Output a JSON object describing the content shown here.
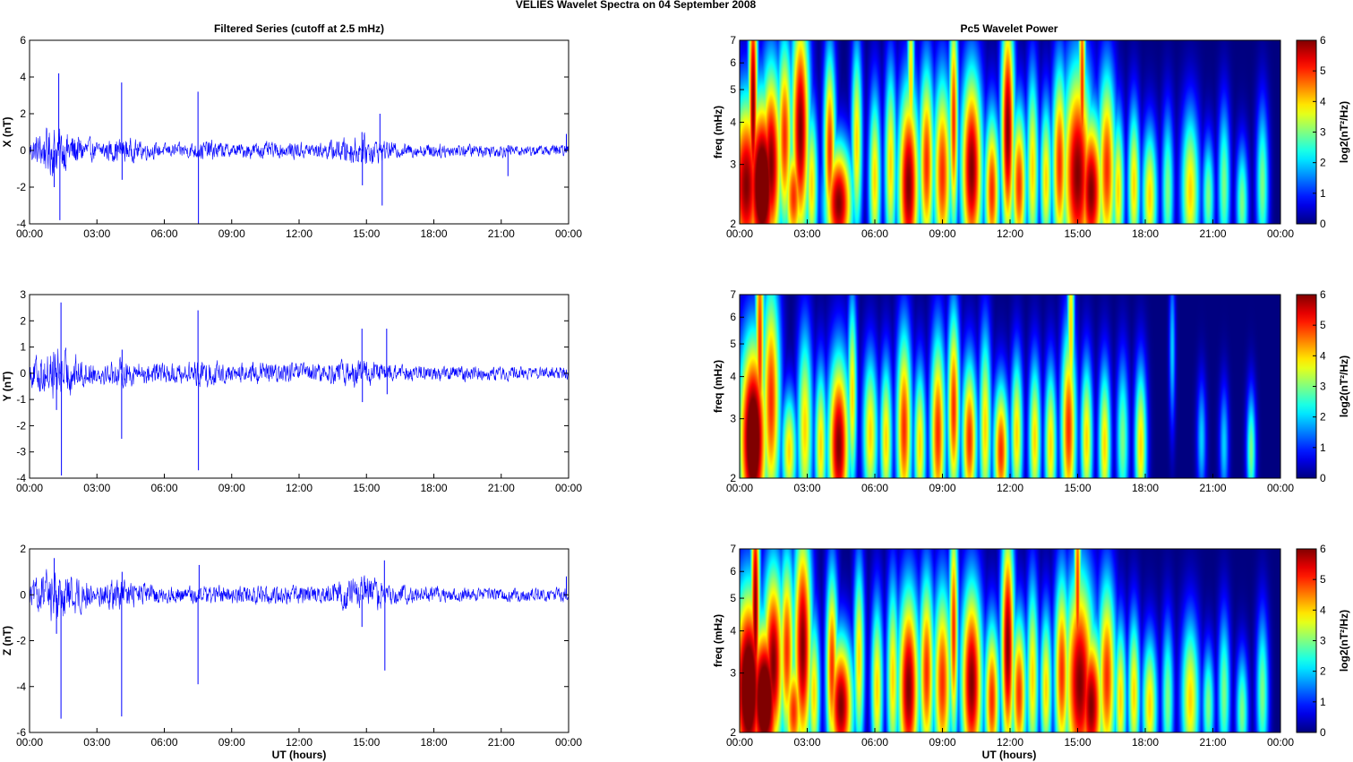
{
  "figure": {
    "suptitle": "VELIES Wavelet Spectra on 04 September 2008",
    "left_title": "Filtered Series (cutoff at 2.5 mHz)",
    "right_title": "Pc5 Wavelet Power",
    "xlabel": "UT (hours)"
  },
  "chart_data": [
    {
      "type": "line",
      "id": "series-x",
      "ylabel": "X (nT)",
      "xlim": [
        0,
        24
      ],
      "ylim": [
        -4,
        6
      ],
      "xticks": [
        "00:00",
        "03:00",
        "06:00",
        "09:00",
        "12:00",
        "15:00",
        "18:00",
        "21:00",
        "00:00"
      ],
      "yticks": [
        -4,
        -2,
        0,
        2,
        4,
        6
      ],
      "line_color": "#0000ff",
      "envelope": [
        [
          0,
          0.5
        ],
        [
          1,
          1.2
        ],
        [
          2,
          0.8
        ],
        [
          3,
          0.4
        ],
        [
          4,
          0.6
        ],
        [
          5,
          0.45
        ],
        [
          6,
          0.3
        ],
        [
          7,
          0.35
        ],
        [
          8,
          0.5
        ],
        [
          9,
          0.3
        ],
        [
          10,
          0.4
        ],
        [
          11,
          0.35
        ],
        [
          12,
          0.4
        ],
        [
          13,
          0.35
        ],
        [
          14,
          0.6
        ],
        [
          15,
          0.7
        ],
        [
          16,
          0.4
        ],
        [
          17,
          0.3
        ],
        [
          18,
          0.35
        ],
        [
          19,
          0.3
        ],
        [
          20,
          0.3
        ],
        [
          21,
          0.3
        ],
        [
          22,
          0.25
        ],
        [
          23,
          0.25
        ],
        [
          24,
          0.3
        ]
      ],
      "spikes": [
        [
          1.3,
          4.2
        ],
        [
          1.35,
          -3.8
        ],
        [
          1.1,
          -2.0
        ],
        [
          4.1,
          3.7
        ],
        [
          4.12,
          -1.6
        ],
        [
          7.5,
          3.2
        ],
        [
          7.52,
          -4.0
        ],
        [
          14.8,
          1.0
        ],
        [
          14.82,
          -1.9
        ],
        [
          15.7,
          -3.0
        ],
        [
          15.6,
          2.0
        ],
        [
          21.3,
          -1.4
        ],
        [
          23.9,
          0.9
        ]
      ]
    },
    {
      "type": "line",
      "id": "series-y",
      "ylabel": "Y (nT)",
      "xlim": [
        0,
        24
      ],
      "ylim": [
        -4,
        3
      ],
      "xticks": [
        "00:00",
        "03:00",
        "06:00",
        "09:00",
        "12:00",
        "15:00",
        "18:00",
        "21:00",
        "00:00"
      ],
      "yticks": [
        -4,
        -3,
        -2,
        -1,
        0,
        1,
        2,
        3
      ],
      "line_color": "#0000ff",
      "envelope": [
        [
          0,
          0.4
        ],
        [
          1,
          0.9
        ],
        [
          2,
          0.6
        ],
        [
          3,
          0.3
        ],
        [
          4,
          0.45
        ],
        [
          5,
          0.4
        ],
        [
          6,
          0.35
        ],
        [
          7,
          0.35
        ],
        [
          8,
          0.45
        ],
        [
          9,
          0.3
        ],
        [
          10,
          0.35
        ],
        [
          11,
          0.3
        ],
        [
          12,
          0.35
        ],
        [
          13,
          0.3
        ],
        [
          14,
          0.4
        ],
        [
          15,
          0.45
        ],
        [
          16,
          0.3
        ],
        [
          17,
          0.25
        ],
        [
          18,
          0.25
        ],
        [
          19,
          0.25
        ],
        [
          20,
          0.22
        ],
        [
          21,
          0.22
        ],
        [
          22,
          0.2
        ],
        [
          23,
          0.2
        ],
        [
          24,
          0.2
        ]
      ],
      "spikes": [
        [
          1.4,
          2.7
        ],
        [
          1.42,
          -3.9
        ],
        [
          1.2,
          -1.4
        ],
        [
          4.1,
          -2.5
        ],
        [
          4.12,
          0.9
        ],
        [
          7.5,
          2.4
        ],
        [
          7.52,
          -3.7
        ],
        [
          14.8,
          1.7
        ],
        [
          14.82,
          -1.1
        ],
        [
          15.9,
          1.7
        ],
        [
          15.92,
          -0.8
        ]
      ]
    },
    {
      "type": "line",
      "id": "series-z",
      "ylabel": "Z (nT)",
      "xlim": [
        0,
        24
      ],
      "ylim": [
        -6,
        2
      ],
      "xticks": [
        "00:00",
        "03:00",
        "06:00",
        "09:00",
        "12:00",
        "15:00",
        "18:00",
        "21:00",
        "00:00"
      ],
      "yticks": [
        -6,
        -4,
        -2,
        0,
        2
      ],
      "line_color": "#0000ff",
      "envelope": [
        [
          0,
          0.4
        ],
        [
          1,
          1.0
        ],
        [
          2,
          0.7
        ],
        [
          3,
          0.4
        ],
        [
          4,
          0.6
        ],
        [
          5,
          0.4
        ],
        [
          6,
          0.3
        ],
        [
          7,
          0.3
        ],
        [
          8,
          0.4
        ],
        [
          9,
          0.3
        ],
        [
          10,
          0.35
        ],
        [
          11,
          0.3
        ],
        [
          12,
          0.35
        ],
        [
          13,
          0.3
        ],
        [
          14,
          0.55
        ],
        [
          15,
          0.7
        ],
        [
          16,
          0.4
        ],
        [
          17,
          0.3
        ],
        [
          18,
          0.3
        ],
        [
          19,
          0.25
        ],
        [
          20,
          0.25
        ],
        [
          21,
          0.25
        ],
        [
          22,
          0.25
        ],
        [
          23,
          0.25
        ],
        [
          24,
          0.3
        ]
      ],
      "spikes": [
        [
          1.4,
          -5.4
        ],
        [
          1.1,
          1.6
        ],
        [
          1.2,
          -1.7
        ],
        [
          4.1,
          -5.3
        ],
        [
          4.12,
          1.0
        ],
        [
          7.5,
          -3.9
        ],
        [
          7.55,
          1.3
        ],
        [
          14.8,
          -1.4
        ],
        [
          15.8,
          1.5
        ],
        [
          15.82,
          -3.3
        ],
        [
          23.9,
          0.8
        ]
      ]
    },
    {
      "type": "heatmap",
      "id": "wavelet-x",
      "ylabel": "freq (mHz)",
      "yscale": "log",
      "xlim": [
        0,
        24
      ],
      "ylim": [
        2,
        7
      ],
      "xticks": [
        "00:00",
        "03:00",
        "06:00",
        "09:00",
        "12:00",
        "15:00",
        "18:00",
        "21:00",
        "00:00"
      ],
      "yticks": [
        2,
        3,
        4,
        5,
        6,
        7
      ],
      "colorbar": {
        "label": "log2(nT²/Hz)",
        "range": [
          0,
          6
        ],
        "ticks": [
          0,
          1,
          2,
          3,
          4,
          5,
          6
        ]
      },
      "blobs": [
        [
          0.3,
          2.6,
          0.5,
          0.45,
          6
        ],
        [
          1.0,
          2.6,
          0.5,
          0.45,
          7
        ],
        [
          0.6,
          4.5,
          0.15,
          0.7,
          6
        ],
        [
          1.4,
          3.0,
          0.35,
          0.5,
          6
        ],
        [
          2.0,
          3.6,
          0.25,
          0.5,
          5
        ],
        [
          2.7,
          3.8,
          0.3,
          0.6,
          6
        ],
        [
          2.4,
          2.4,
          0.3,
          0.3,
          5
        ],
        [
          3.2,
          2.6,
          0.2,
          0.4,
          4
        ],
        [
          4.0,
          3.3,
          0.2,
          0.5,
          5
        ],
        [
          4.4,
          2.3,
          0.45,
          0.3,
          6
        ],
        [
          5.2,
          3.5,
          0.18,
          0.5,
          4
        ],
        [
          6.0,
          2.7,
          0.2,
          0.45,
          4
        ],
        [
          6.7,
          3.0,
          0.2,
          0.5,
          4
        ],
        [
          7.5,
          2.6,
          0.35,
          0.5,
          6
        ],
        [
          7.6,
          5.2,
          0.12,
          0.6,
          4
        ],
        [
          8.3,
          3.0,
          0.25,
          0.5,
          5
        ],
        [
          9.0,
          2.8,
          0.3,
          0.5,
          5
        ],
        [
          9.5,
          4.0,
          0.15,
          0.6,
          5
        ],
        [
          10.3,
          2.9,
          0.35,
          0.5,
          6
        ],
        [
          11.2,
          2.5,
          0.25,
          0.4,
          5
        ],
        [
          11.9,
          3.8,
          0.22,
          0.6,
          6
        ],
        [
          12.4,
          2.6,
          0.25,
          0.4,
          5
        ],
        [
          13.0,
          2.9,
          0.2,
          0.5,
          4
        ],
        [
          13.6,
          2.7,
          0.2,
          0.4,
          4
        ],
        [
          14.2,
          3.0,
          0.25,
          0.5,
          5
        ],
        [
          15.0,
          2.8,
          0.5,
          0.55,
          6
        ],
        [
          15.6,
          2.5,
          0.4,
          0.4,
          6
        ],
        [
          16.3,
          2.9,
          0.3,
          0.5,
          5
        ],
        [
          15.2,
          5.0,
          0.12,
          0.8,
          5
        ],
        [
          16.8,
          2.5,
          0.2,
          0.4,
          4
        ],
        [
          17.5,
          2.6,
          0.2,
          0.4,
          4
        ],
        [
          18.2,
          2.4,
          0.25,
          0.35,
          4
        ],
        [
          19.0,
          2.5,
          0.2,
          0.4,
          3
        ],
        [
          20.0,
          2.5,
          0.3,
          0.4,
          4
        ],
        [
          20.8,
          2.4,
          0.2,
          0.3,
          3
        ],
        [
          21.5,
          2.6,
          0.2,
          0.4,
          3
        ],
        [
          22.3,
          2.3,
          0.2,
          0.3,
          3
        ],
        [
          23.2,
          2.6,
          0.2,
          0.4,
          3
        ]
      ]
    },
    {
      "type": "heatmap",
      "id": "wavelet-y",
      "ylabel": "freq (mHz)",
      "yscale": "log",
      "xlim": [
        0,
        24
      ],
      "ylim": [
        2,
        7
      ],
      "xticks": [
        "00:00",
        "03:00",
        "06:00",
        "09:00",
        "12:00",
        "15:00",
        "18:00",
        "21:00",
        "00:00"
      ],
      "yticks": [
        2,
        3,
        4,
        5,
        6,
        7
      ],
      "colorbar": {
        "label": "log2(nT²/Hz)",
        "range": [
          0,
          6
        ],
        "ticks": [
          0,
          1,
          2,
          3,
          4,
          5,
          6
        ]
      },
      "blobs": [
        [
          0.6,
          2.6,
          0.45,
          0.5,
          7
        ],
        [
          1.4,
          3.4,
          0.3,
          0.6,
          5
        ],
        [
          0.9,
          5.0,
          0.15,
          0.8,
          5
        ],
        [
          2.2,
          2.4,
          0.25,
          0.3,
          4
        ],
        [
          2.9,
          2.8,
          0.25,
          0.5,
          4
        ],
        [
          3.6,
          2.5,
          0.2,
          0.4,
          4
        ],
        [
          4.4,
          2.5,
          0.35,
          0.45,
          6
        ],
        [
          5.0,
          3.5,
          0.15,
          0.5,
          4
        ],
        [
          5.8,
          2.7,
          0.25,
          0.4,
          4
        ],
        [
          6.5,
          2.6,
          0.2,
          0.4,
          4
        ],
        [
          7.3,
          2.8,
          0.25,
          0.5,
          5
        ],
        [
          8.0,
          2.5,
          0.2,
          0.4,
          4
        ],
        [
          8.8,
          2.7,
          0.25,
          0.5,
          5
        ],
        [
          9.5,
          3.2,
          0.2,
          0.5,
          5
        ],
        [
          10.2,
          2.6,
          0.25,
          0.4,
          5
        ],
        [
          10.9,
          2.8,
          0.2,
          0.5,
          4
        ],
        [
          11.6,
          2.4,
          0.25,
          0.35,
          5
        ],
        [
          12.3,
          2.7,
          0.2,
          0.4,
          4
        ],
        [
          13.1,
          2.6,
          0.2,
          0.4,
          4
        ],
        [
          13.8,
          2.5,
          0.2,
          0.4,
          4
        ],
        [
          14.6,
          2.8,
          0.25,
          0.5,
          5
        ],
        [
          14.7,
          5.5,
          0.12,
          0.7,
          4
        ],
        [
          15.4,
          2.6,
          0.2,
          0.4,
          4
        ],
        [
          16.2,
          2.5,
          0.2,
          0.4,
          4
        ],
        [
          17.0,
          2.6,
          0.2,
          0.4,
          3
        ],
        [
          17.8,
          2.5,
          0.2,
          0.4,
          4
        ],
        [
          19.2,
          4.8,
          0.1,
          0.4,
          2
        ],
        [
          20.5,
          2.6,
          0.15,
          0.3,
          2
        ],
        [
          21.5,
          2.5,
          0.15,
          0.3,
          2
        ],
        [
          22.7,
          2.4,
          0.15,
          0.3,
          3
        ]
      ]
    },
    {
      "type": "heatmap",
      "id": "wavelet-z",
      "ylabel": "freq (mHz)",
      "yscale": "log",
      "xlim": [
        0,
        24
      ],
      "ylim": [
        2,
        7
      ],
      "xticks": [
        "00:00",
        "03:00",
        "06:00",
        "09:00",
        "12:00",
        "15:00",
        "18:00",
        "21:00",
        "00:00"
      ],
      "yticks": [
        2,
        3,
        4,
        5,
        6,
        7
      ],
      "colorbar": {
        "label": "log2(nT²/Hz)",
        "range": [
          0,
          6
        ],
        "ticks": [
          0,
          1,
          2,
          3,
          4,
          5,
          6
        ]
      },
      "blobs": [
        [
          0.4,
          2.7,
          0.5,
          0.5,
          7
        ],
        [
          1.1,
          2.5,
          0.5,
          0.4,
          7
        ],
        [
          0.7,
          4.6,
          0.15,
          0.7,
          6
        ],
        [
          1.5,
          3.2,
          0.35,
          0.5,
          6
        ],
        [
          2.1,
          3.5,
          0.25,
          0.5,
          5
        ],
        [
          2.8,
          3.6,
          0.3,
          0.6,
          6
        ],
        [
          2.4,
          2.3,
          0.3,
          0.3,
          5
        ],
        [
          3.3,
          2.6,
          0.2,
          0.4,
          4
        ],
        [
          4.1,
          3.1,
          0.2,
          0.5,
          5
        ],
        [
          4.5,
          2.4,
          0.4,
          0.35,
          6
        ],
        [
          5.3,
          3.3,
          0.18,
          0.5,
          4
        ],
        [
          6.1,
          2.7,
          0.2,
          0.45,
          4
        ],
        [
          6.8,
          2.9,
          0.2,
          0.5,
          4
        ],
        [
          7.5,
          2.7,
          0.35,
          0.5,
          6
        ],
        [
          8.3,
          3.0,
          0.25,
          0.5,
          5
        ],
        [
          9.0,
          2.8,
          0.3,
          0.5,
          5
        ],
        [
          9.5,
          4.0,
          0.15,
          0.6,
          5
        ],
        [
          10.3,
          2.8,
          0.35,
          0.5,
          6
        ],
        [
          11.2,
          2.5,
          0.25,
          0.4,
          5
        ],
        [
          11.9,
          3.6,
          0.22,
          0.6,
          6
        ],
        [
          12.4,
          2.6,
          0.25,
          0.4,
          5
        ],
        [
          13.0,
          2.9,
          0.2,
          0.5,
          4
        ],
        [
          13.6,
          2.7,
          0.2,
          0.4,
          4
        ],
        [
          14.3,
          3.0,
          0.25,
          0.5,
          5
        ],
        [
          15.1,
          2.8,
          0.5,
          0.55,
          6
        ],
        [
          15.6,
          2.4,
          0.4,
          0.4,
          6
        ],
        [
          16.3,
          2.9,
          0.3,
          0.5,
          5
        ],
        [
          15.0,
          5.0,
          0.12,
          0.8,
          5
        ],
        [
          16.9,
          2.5,
          0.2,
          0.4,
          4
        ],
        [
          17.5,
          2.6,
          0.2,
          0.4,
          4
        ],
        [
          18.2,
          2.4,
          0.25,
          0.35,
          4
        ],
        [
          19.0,
          2.5,
          0.2,
          0.4,
          3
        ],
        [
          20.0,
          2.5,
          0.3,
          0.4,
          4
        ],
        [
          20.8,
          2.4,
          0.2,
          0.3,
          3
        ],
        [
          21.5,
          2.6,
          0.2,
          0.4,
          3
        ],
        [
          22.3,
          2.3,
          0.2,
          0.3,
          3
        ],
        [
          23.2,
          2.6,
          0.2,
          0.4,
          3
        ]
      ]
    }
  ]
}
